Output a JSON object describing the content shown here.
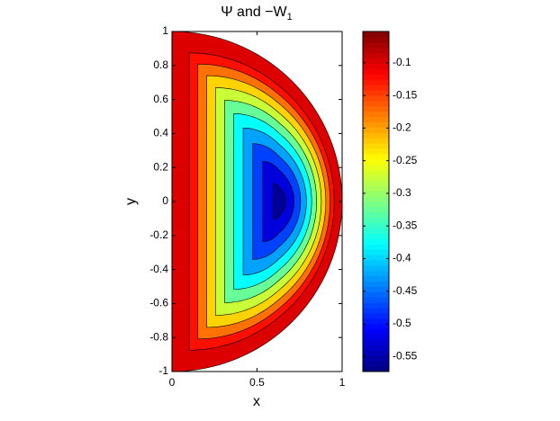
{
  "chart_data": {
    "type": "contour",
    "title": "Ψ and −W",
    "title_subscript": "1",
    "x_label": "x",
    "y_label": "y",
    "xlim": [
      0,
      1
    ],
    "ylim": [
      -1,
      1
    ],
    "xticks": [
      0,
      0.5,
      1
    ],
    "yticks": [
      -1,
      -0.8,
      -0.6,
      -0.4,
      -0.2,
      0,
      0.2,
      0.4,
      0.6,
      0.8,
      1
    ],
    "center": [
      0.63,
      0
    ],
    "levels": [
      -0.1,
      -0.15,
      -0.2,
      -0.25,
      -0.3,
      -0.35,
      -0.4,
      -0.45,
      -0.5,
      -0.55
    ],
    "colormap": "jet",
    "clim": [
      -0.573,
      -0.052
    ],
    "cticks": [
      -0.1,
      -0.15,
      -0.2,
      -0.25,
      -0.3,
      -0.35,
      -0.4,
      -0.45,
      -0.5,
      -0.55
    ]
  }
}
